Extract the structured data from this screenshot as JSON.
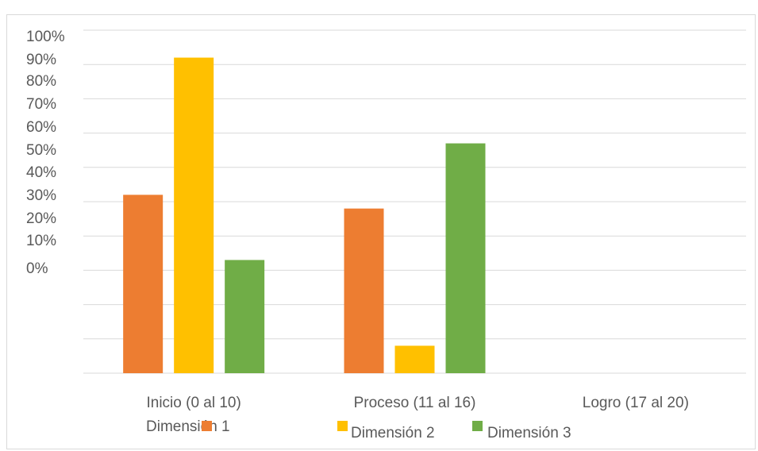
{
  "chart_data": {
    "type": "bar",
    "title": "",
    "xlabel": "",
    "ylabel": "",
    "y_tick_labels": [
      "100%",
      "90%",
      "80%",
      "70%",
      "60%",
      "50%",
      "40%",
      "30%",
      "20%",
      "10%",
      "0%"
    ],
    "ylim": [
      0,
      100
    ],
    "categories": [
      "Inicio (0 al 10)",
      "Proceso (11 al 16)",
      "Logro (17 al 20)"
    ],
    "series": [
      {
        "name": "Dimensión 1",
        "color": "#ED7D31",
        "values": [
          52,
          48,
          0
        ]
      },
      {
        "name": "Dimensión 2",
        "color": "#FFC000",
        "values": [
          92,
          8,
          0
        ]
      },
      {
        "name": "Dimensión 3",
        "color": "#70AD47",
        "values": [
          33,
          67,
          0
        ]
      }
    ],
    "grid": true,
    "legend_position": "bottom"
  }
}
